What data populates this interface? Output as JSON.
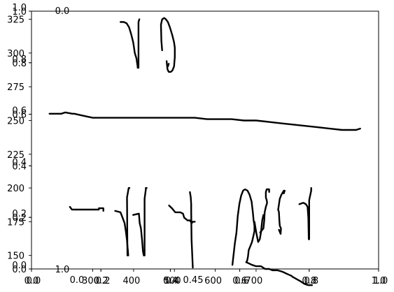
{
  "chart_data": {
    "type": "line",
    "title": "",
    "xlabel": "",
    "ylabel": "",
    "grid": false,
    "legend": "none",
    "colors": {
      "stroke": "#000000",
      "axes": "#000000",
      "background": "#ffffff"
    },
    "ink_axes": {
      "xlim": [
        150,
        1000
      ],
      "ylim": [
        140,
        331
      ],
      "y_ticks": [
        "150",
        "175",
        "200",
        "225",
        "250",
        "275",
        "300",
        "325"
      ],
      "x_ticks": [
        "300",
        "400",
        "500",
        "600",
        "700"
      ]
    },
    "overlay_axes": [
      {
        "ticks": [
          "0.0",
          "0.2",
          "0.4",
          "0.6",
          "0.8",
          "1.0"
        ]
      },
      {
        "ticks": [
          "0.0",
          "0.2",
          "0.4",
          "0.6",
          "0.8",
          "1.0"
        ]
      }
    ],
    "stray_labels": [
      "0.0",
      "1.0",
      "0.0",
      "0.45"
    ],
    "series": [
      {
        "x": [
          368,
          376,
          383,
          389,
          394,
          399,
          401,
          403,
          407,
          409,
          410,
          410
        ],
        "y": [
          323,
          323,
          322,
          319,
          314,
          308,
          304,
          300,
          296,
          292,
          290,
          289
        ]
      },
      {
        "x": [
          412,
          412,
          414
        ],
        "y": [
          289,
          323,
          325
        ]
      },
      {
        "x": [
          470,
          468,
          467,
          470,
          475,
          479,
          484,
          489,
          495,
          499,
          501,
          501,
          499,
          495,
          491,
          486,
          483,
          482,
          481
        ],
        "y": [
          302,
          309,
          321,
          325,
          326,
          325,
          323,
          319,
          313,
          308,
          304,
          297,
          290,
          287,
          286,
          286,
          288,
          291,
          294
        ]
      },
      {
        "x": [
          484,
          486
        ],
        "y": [
          290,
          292
        ]
      },
      {
        "x": [
          194,
          223,
          233,
          250,
          255,
          270,
          300,
          320,
          341,
          360,
          380,
          400,
          430,
          460,
          490,
          520,
          550,
          580,
          610,
          640,
          670,
          700,
          730,
          760,
          790,
          820,
          850,
          880,
          910,
          928,
          945,
          955
        ],
        "y": [
          255,
          255,
          256,
          255,
          255,
          254,
          252,
          252,
          252,
          252,
          252,
          252,
          252,
          252,
          252,
          252,
          252,
          251,
          251,
          251,
          250,
          250,
          249,
          248,
          247,
          246,
          245,
          244,
          243,
          243,
          243,
          244
        ]
      },
      {
        "x": [
          244,
          249,
          260,
          272,
          284,
          296,
          306,
          315,
          315,
          326,
          326
        ],
        "y": [
          186,
          184,
          184,
          184,
          184,
          184,
          184,
          184,
          185,
          185,
          183
        ]
      },
      {
        "x": [
          355,
          368,
          373,
          378,
          381,
          384,
          385,
          386,
          387
        ],
        "y": [
          183,
          182,
          178,
          174,
          168,
          161,
          157,
          154,
          150
        ]
      },
      {
        "x": [
          385,
          384,
          388,
          390
        ],
        "y": [
          150,
          193,
          200,
          200
        ]
      },
      {
        "x": [
          399,
          413,
          415,
          418,
          421,
          423,
          425
        ],
        "y": [
          180,
          181,
          174,
          170,
          161,
          153,
          150
        ]
      },
      {
        "x": [
          427,
          427,
          430,
          430,
          432
        ],
        "y": [
          150,
          192,
          199,
          200,
          200
        ]
      },
      {
        "x": [
          487,
          494,
          502,
          514,
          521,
          524,
          528,
          532,
          538,
          540,
          542,
          543,
          544,
          546,
          550
        ],
        "y": [
          187,
          185,
          182,
          182,
          181,
          178,
          177,
          176,
          176,
          175,
          174,
          174,
          175,
          175,
          175
        ]
      },
      {
        "x": [
          538,
          540,
          541,
          541,
          542,
          545
        ],
        "y": [
          197,
          193,
          188,
          183,
          162,
          141
        ]
      },
      {
        "x": [
          642,
          648,
          652,
          655,
          659,
          663,
          668,
          673,
          679,
          684,
          689,
          692,
          694,
          696,
          696,
          693,
          690,
          686,
          682,
          680,
          678,
          676
        ],
        "y": [
          143,
          159,
          167,
          179,
          188,
          194,
          198,
          199,
          198,
          195,
          190,
          182,
          176,
          172,
          168,
          164,
          160,
          157,
          154,
          149,
          146,
          145
        ]
      },
      {
        "x": [
          676,
          690,
          700,
          712,
          722,
          732,
          740,
          752,
          764,
          778,
          786,
          790,
          796
        ],
        "y": [
          145,
          143,
          142,
          142,
          140,
          140,
          139,
          139,
          138,
          136,
          135,
          134,
          133
        ]
      },
      {
        "x": [
          796,
          808,
          818,
          828,
          837
        ],
        "y": [
          133,
          131,
          129,
          128,
          128
        ]
      },
      {
        "x": [
          710,
          718,
          720,
          721,
          724,
          727,
          726,
          724,
          724,
          726,
          729,
          732,
          732
        ],
        "y": [
          167,
          170,
          176,
          182,
          186,
          189,
          191,
          193,
          197,
          199,
          199,
          199,
          197
        ]
      },
      {
        "x": [
          696,
          701,
          705,
          709,
          712,
          715,
          718
        ],
        "y": [
          175,
          166,
          160,
          162,
          167,
          176,
          180
        ]
      },
      {
        "x": [
          756,
          760,
          761,
          758,
          757,
          756,
          754
        ],
        "y": [
          169,
          166,
          170,
          172,
          176,
          182,
          184
        ]
      },
      {
        "x": [
          754,
          758,
          762,
          768,
          770,
          768
        ],
        "y": [
          184,
          192,
          195,
          198,
          198,
          196
        ]
      },
      {
        "x": [
          806,
          816,
          822,
          826,
          828,
          829
        ],
        "y": [
          188,
          189,
          188,
          186,
          178,
          162
        ]
      },
      {
        "x": [
          830,
          830,
          835,
          835
        ],
        "y": [
          162,
          191,
          198,
          200
        ]
      },
      {
        "x": [
          828,
          829
        ],
        "y": [
          180,
          178
        ]
      }
    ]
  }
}
